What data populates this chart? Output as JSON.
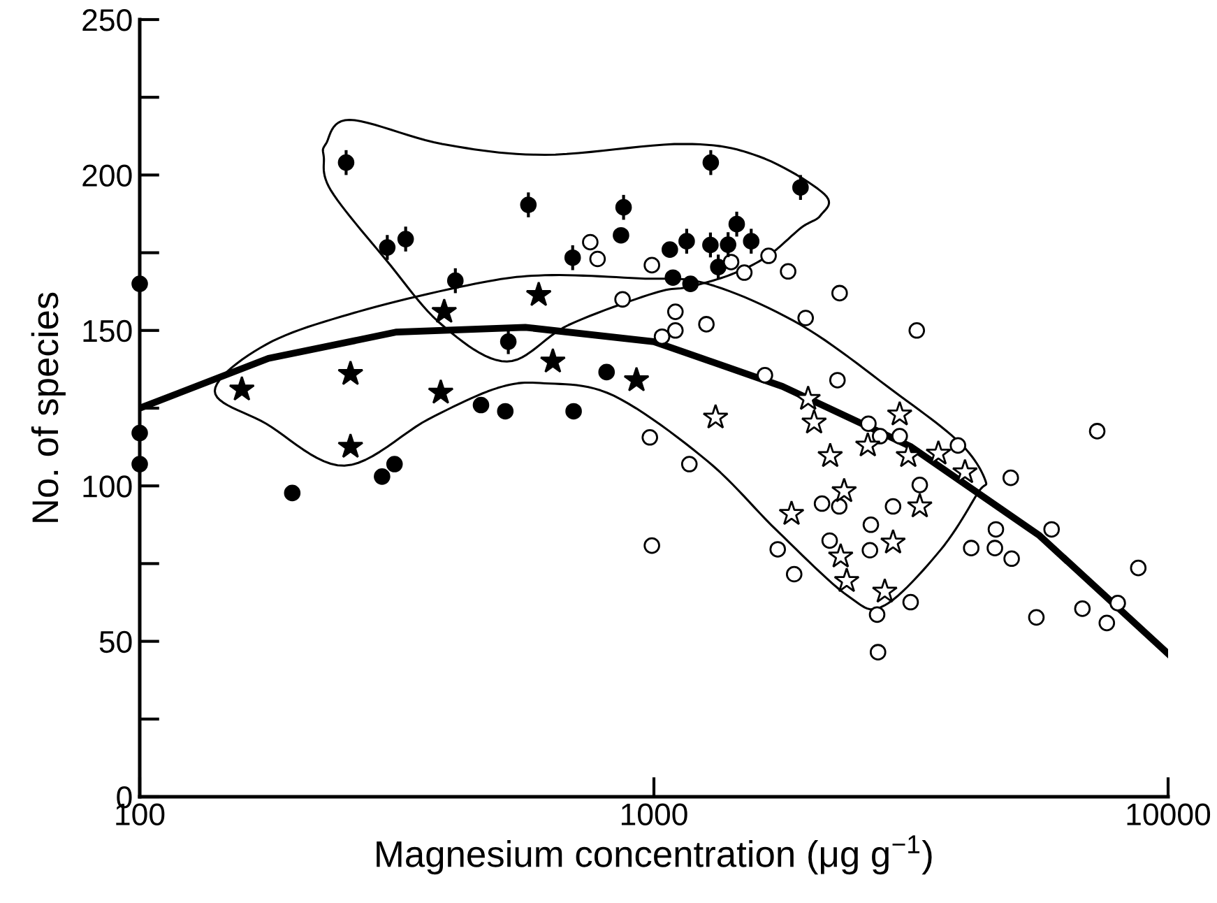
{
  "chart_data": {
    "type": "scatter",
    "xlabel": "Magnesium concentration (μg g$^{−1}$)",
    "ylabel": "No. of species",
    "log": "x",
    "xlim": [
      100,
      10000
    ],
    "xticks": [
      100,
      1000,
      10000
    ],
    "ylim": [
      0,
      250
    ],
    "yticks": [
      0,
      {
        "value": 25,
        "label": null
      },
      50,
      {
        "value": 75,
        "label": null
      },
      100,
      {
        "value": 125,
        "label": null
      },
      150,
      {
        "value": 175,
        "label": null
      },
      200,
      {
        "value": 225,
        "label": null
      },
      250
    ],
    "grid": false,
    "legend": false,
    "series": [
      {
        "type": "line",
        "color": "#000000",
        "x": [
          100,
          178,
          316,
          562,
          1000,
          1778,
          3162,
          5623,
          10000
        ],
        "values": [
          125,
          141,
          149.5,
          151,
          146.4,
          132,
          112.6,
          84,
          46
        ]
      },
      {
        "marker": "circle",
        "color": "#000000",
        "x": [
          100,
          100,
          100,
          198,
          296,
          313,
          461,
          514,
          698,
          809,
          863,
          1074,
          1089,
          1178
        ],
        "values": [
          165,
          117,
          107,
          97.7,
          103,
          107,
          126,
          124,
          124,
          136.6,
          180.6,
          176,
          167,
          165
        ]
      },
      {
        "marker": "circle",
        "color": "#000000",
        "errors": [
          4,
          4,
          4,
          4,
          4,
          4,
          4,
          4,
          4,
          4,
          4,
          4,
          4,
          4,
          4,
          4
        ],
        "x": [
          252,
          303,
          329,
          411,
          521,
          570,
          695,
          873,
          1158,
          1288,
          1394,
          1449,
          1546,
          1334,
          1290,
          1928
        ],
        "values": [
          204,
          176.7,
          179.4,
          166,
          146.4,
          190.4,
          173.4,
          189.6,
          178.7,
          177.5,
          177.6,
          184.2,
          178.7,
          170.4,
          204,
          196
        ]
      },
      {
        "marker": "circle",
        "color": "#ffffff",
        "x": [
          752,
          777,
          869,
          991,
          1101,
          1101,
          1037,
          982,
          991,
          1413,
          1499,
          1671,
          1824,
          2297,
          1973,
          1265,
          3245,
          1644,
          2275,
          1172,
          2613,
          2754,
          3006,
          3902,
          7280,
          4943,
          3289,
          2123,
          2293,
          2918,
          2642,
          4625,
          5935,
          2197,
          2631,
          1741,
          4141,
          4604,
          4963,
          1874,
          8750,
          3157,
          2717,
          5544,
          6813,
          7600,
          7981,
          2728
        ],
        "values": [
          178.4,
          173,
          160,
          171,
          156,
          150,
          148,
          115.6,
          80.8,
          172,
          168.6,
          174,
          169,
          162,
          154,
          152,
          150,
          135.6,
          134,
          107,
          120,
          116,
          116,
          113,
          117.6,
          102.6,
          100.3,
          94.3,
          93.4,
          93.4,
          87.5,
          86,
          86,
          82.4,
          79.3,
          79.6,
          80,
          80,
          76.6,
          71.6,
          73.6,
          62.6,
          58.6,
          57.7,
          60.5,
          55.9,
          62.3,
          46.5
        ]
      },
      {
        "marker": "star",
        "color": "#000000",
        "x": [
          158,
          257,
          257,
          391,
          385,
          597,
          636,
          925
        ],
        "values": [
          131,
          136,
          112.6,
          156,
          130,
          161.4,
          140,
          134
        ]
      },
      {
        "marker": "star",
        "color": "#ffffff",
        "x": [
          1318,
          1995,
          2049,
          2202,
          2606,
          3006,
          3124,
          3575,
          4027,
          2344,
          1852,
          3289,
          2918,
          2308,
          2371,
          2812
        ],
        "values": [
          122,
          128,
          120.4,
          109.6,
          113,
          123,
          109.6,
          110.4,
          104.4,
          98.3,
          91,
          93.4,
          81.8,
          77.3,
          69.4,
          66
        ]
      }
    ]
  }
}
